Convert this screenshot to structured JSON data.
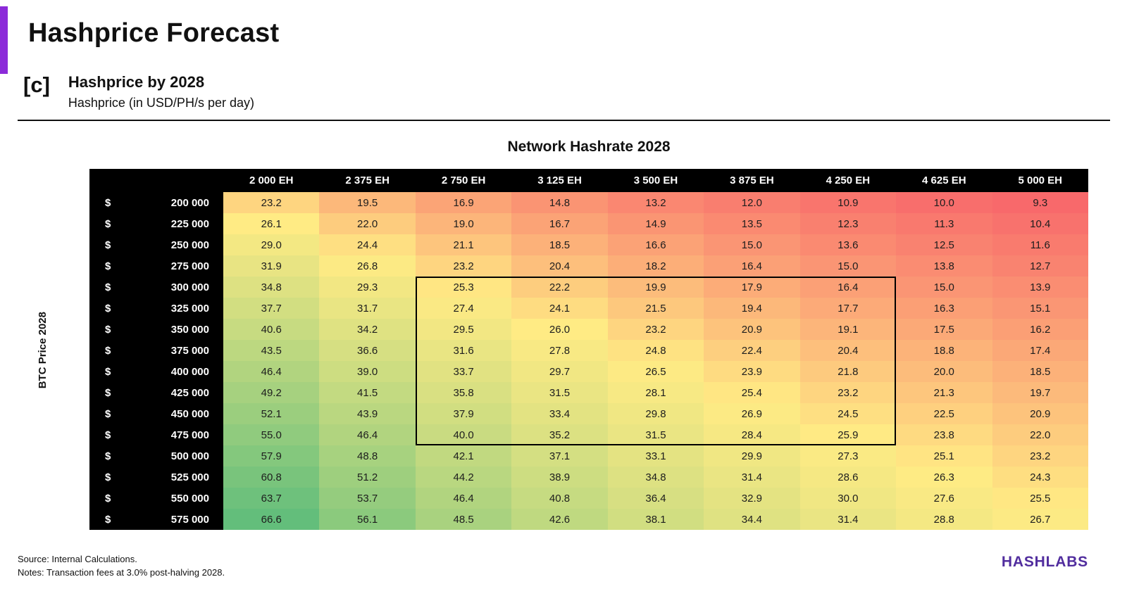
{
  "page": {
    "title": "Hashprice Forecast",
    "section_label": "[c]",
    "section_title": "Hashprice by 2028",
    "section_subtitle": "Hashprice (in USD/PH/s per day)",
    "footer_source": "Source: Internal Calculations.",
    "footer_notes": "Notes: Transaction fees at 3.0% post-halving 2028.",
    "brand": "HASHLABS",
    "accent_color": "#8C2BD9",
    "brand_color": "#512D9E"
  },
  "chart_data": {
    "type": "heatmap",
    "title": "Network Hashrate 2028",
    "xlabel": "Network Hashrate 2028",
    "ylabel": "BTC Price 2028",
    "value_unit": "USD/PH/s per day",
    "row_prefix": "$",
    "columns": [
      "2 000 EH",
      "2 375 EH",
      "2 750 EH",
      "3 125 EH",
      "3 500 EH",
      "3 875 EH",
      "4 250 EH",
      "4 625 EH",
      "5 000 EH"
    ],
    "rows": [
      "200 000",
      "225 000",
      "250 000",
      "275 000",
      "300 000",
      "325 000",
      "350 000",
      "375 000",
      "400 000",
      "425 000",
      "450 000",
      "475 000",
      "500 000",
      "525 000",
      "550 000",
      "575 000"
    ],
    "values": [
      [
        23.2,
        19.5,
        16.9,
        14.8,
        13.2,
        12.0,
        10.9,
        10.0,
        9.3
      ],
      [
        26.1,
        22.0,
        19.0,
        16.7,
        14.9,
        13.5,
        12.3,
        11.3,
        10.4
      ],
      [
        29.0,
        24.4,
        21.1,
        18.5,
        16.6,
        15.0,
        13.6,
        12.5,
        11.6
      ],
      [
        31.9,
        26.8,
        23.2,
        20.4,
        18.2,
        16.4,
        15.0,
        13.8,
        12.7
      ],
      [
        34.8,
        29.3,
        25.3,
        22.2,
        19.9,
        17.9,
        16.4,
        15.0,
        13.9
      ],
      [
        37.7,
        31.7,
        27.4,
        24.1,
        21.5,
        19.4,
        17.7,
        16.3,
        15.1
      ],
      [
        40.6,
        34.2,
        29.5,
        26.0,
        23.2,
        20.9,
        19.1,
        17.5,
        16.2
      ],
      [
        43.5,
        36.6,
        31.6,
        27.8,
        24.8,
        22.4,
        20.4,
        18.8,
        17.4
      ],
      [
        46.4,
        39.0,
        33.7,
        29.7,
        26.5,
        23.9,
        21.8,
        20.0,
        18.5
      ],
      [
        49.2,
        41.5,
        35.8,
        31.5,
        28.1,
        25.4,
        23.2,
        21.3,
        19.7
      ],
      [
        52.1,
        43.9,
        37.9,
        33.4,
        29.8,
        26.9,
        24.5,
        22.5,
        20.9
      ],
      [
        55.0,
        46.4,
        40.0,
        35.2,
        31.5,
        28.4,
        25.9,
        23.8,
        22.0
      ],
      [
        57.9,
        48.8,
        42.1,
        37.1,
        33.1,
        29.9,
        27.3,
        25.1,
        23.2
      ],
      [
        60.8,
        51.2,
        44.2,
        38.9,
        34.8,
        31.4,
        28.6,
        26.3,
        24.3
      ],
      [
        63.7,
        53.7,
        46.4,
        40.8,
        36.4,
        32.9,
        30.0,
        27.6,
        25.5
      ],
      [
        66.6,
        56.1,
        48.5,
        42.6,
        38.1,
        34.4,
        31.4,
        28.8,
        26.7
      ]
    ],
    "color_scale": {
      "min": 9.3,
      "mid": 26.0,
      "max": 66.6,
      "min_color": "#F8696B",
      "mid_color": "#FFEB84",
      "max_color": "#63BE7B"
    },
    "highlight_box": {
      "row_start": 4,
      "row_end": 11,
      "col_start": 2,
      "col_end": 6
    },
    "legend_position": "none",
    "grid": false
  }
}
